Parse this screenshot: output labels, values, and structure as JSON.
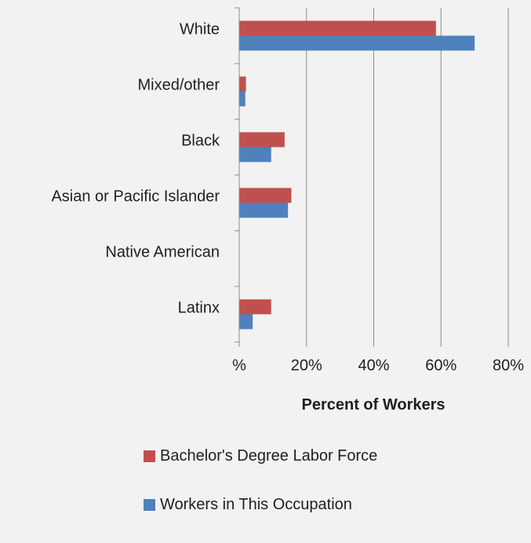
{
  "chart_data": {
    "type": "bar",
    "orientation": "horizontal",
    "categories": [
      "White",
      "Mixed/other",
      "Black",
      "Asian or Pacific Islander",
      "Native American",
      "Latinx"
    ],
    "series": [
      {
        "name": "Bachelor's Degree Labor Force",
        "color": "#c0504d",
        "values": [
          58.5,
          2.0,
          13.5,
          15.5,
          0,
          9.5
        ]
      },
      {
        "name": "Workers in This Occupation",
        "color": "#4f81bd",
        "values": [
          70.0,
          1.8,
          9.5,
          14.5,
          0,
          4.0
        ]
      }
    ],
    "xlim": [
      0,
      80
    ],
    "xticks": [
      0,
      20,
      40,
      60,
      80
    ],
    "xtick_labels": [
      "%",
      "20%",
      "40%",
      "60%",
      "80%"
    ],
    "xlabel": "Percent of Workers",
    "grid": "vertical",
    "legend": "bottom"
  }
}
